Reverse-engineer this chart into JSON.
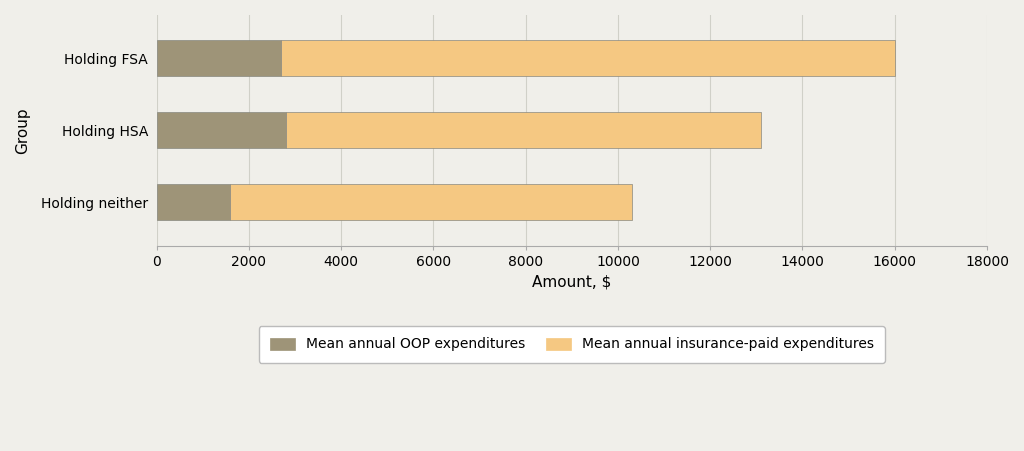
{
  "categories": [
    "Holding neither",
    "Holding HSA",
    "Holding FSA"
  ],
  "oop_values": [
    1600,
    2800,
    2700
  ],
  "insurance_values": [
    8700,
    10300,
    13300
  ],
  "oop_color": "#9e9478",
  "insurance_color": "#f5c882",
  "xlabel": "Amount, $",
  "ylabel": "Group",
  "xlim": [
    0,
    18000
  ],
  "xticks": [
    0,
    2000,
    4000,
    6000,
    8000,
    10000,
    12000,
    14000,
    16000,
    18000
  ],
  "legend_oop": "Mean annual OOP expenditures",
  "legend_insurance": "Mean annual insurance-paid expenditures",
  "bar_height": 0.5,
  "background_color": "#f0efea",
  "grid_color": "#d0d0c8",
  "bar_edge_color": "#888880",
  "bar_edge_width": 0.5
}
